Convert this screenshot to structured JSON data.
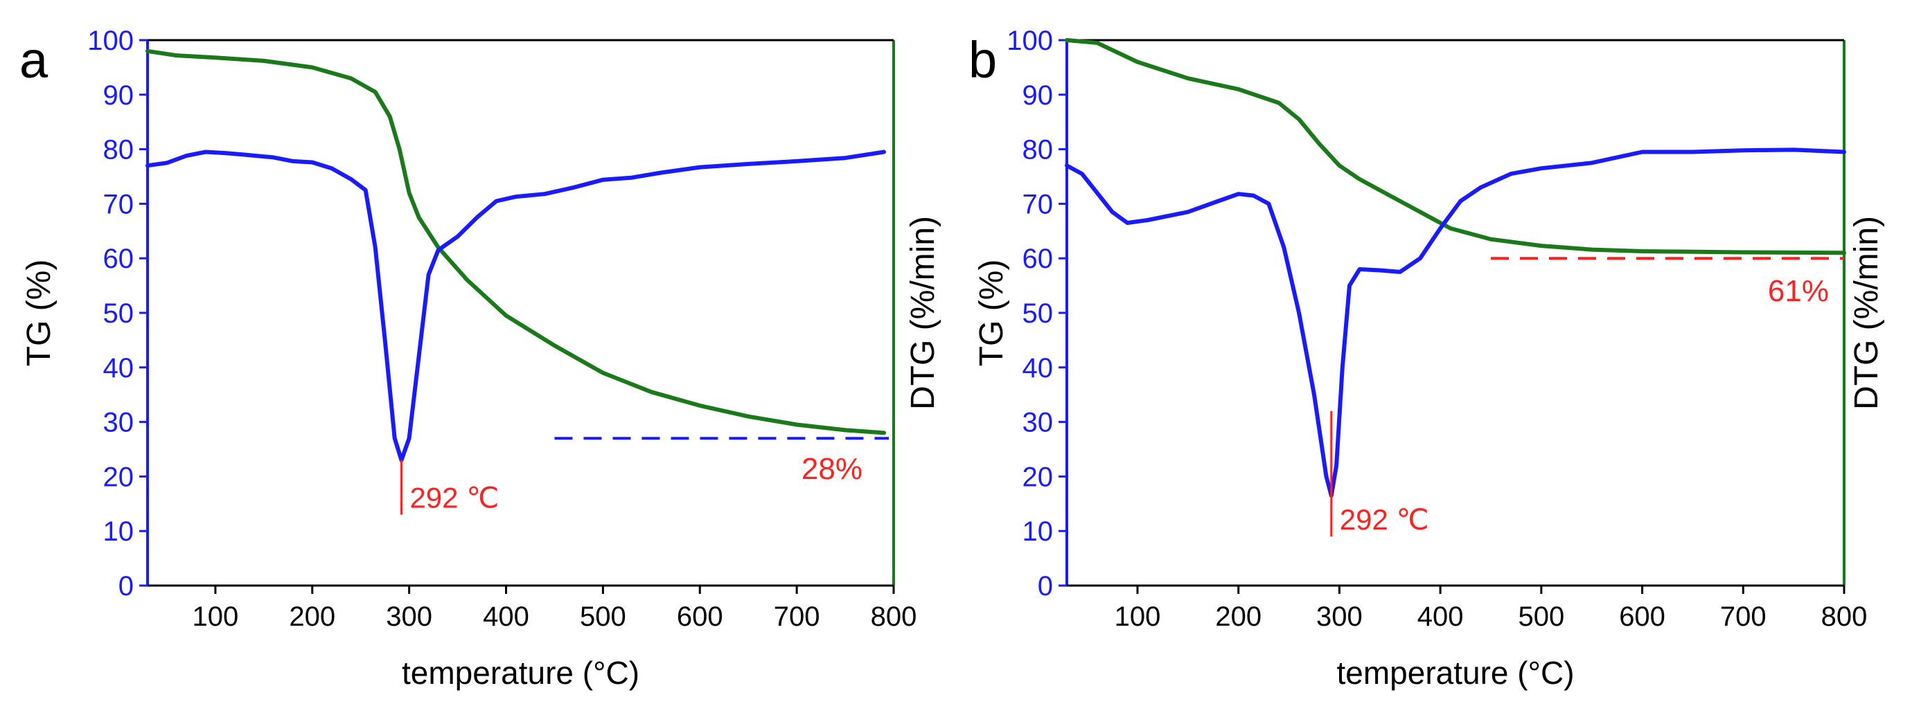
{
  "chart_data": [
    {
      "type": "line",
      "panel_label": "a",
      "xlabel": "temperature (°C)",
      "ylabel_left": "TG (%)",
      "ylabel_right": "DTG (%/min)",
      "xlim": [
        30,
        800
      ],
      "ylim": [
        0,
        100
      ],
      "x_ticks": [
        "100",
        "200",
        "300",
        "400",
        "500",
        "600",
        "700",
        "800"
      ],
      "y_ticks": [
        "0",
        "10",
        "20",
        "30",
        "40",
        "50",
        "60",
        "70",
        "80",
        "90",
        "100"
      ],
      "series": [
        {
          "name": "TG",
          "color": "#1a7a1a",
          "points": [
            [
              30,
              98
            ],
            [
              60,
              97.2
            ],
            [
              100,
              96.8
            ],
            [
              150,
              96.2
            ],
            [
              200,
              95
            ],
            [
              240,
              93
            ],
            [
              265,
              90.5
            ],
            [
              280,
              86
            ],
            [
              290,
              80
            ],
            [
              300,
              72
            ],
            [
              310,
              67.5
            ],
            [
              330,
              62
            ],
            [
              360,
              56
            ],
            [
              400,
              49.5
            ],
            [
              450,
              44
            ],
            [
              500,
              39
            ],
            [
              550,
              35.5
            ],
            [
              600,
              33
            ],
            [
              650,
              31
            ],
            [
              700,
              29.5
            ],
            [
              750,
              28.5
            ],
            [
              790,
              28
            ]
          ]
        },
        {
          "name": "DTG",
          "color": "#1a1aff",
          "points": [
            [
              30,
              77
            ],
            [
              50,
              77.5
            ],
            [
              70,
              78.8
            ],
            [
              90,
              79.5
            ],
            [
              110,
              79.3
            ],
            [
              130,
              79
            ],
            [
              160,
              78.5
            ],
            [
              180,
              77.8
            ],
            [
              200,
              77.6
            ],
            [
              220,
              76.5
            ],
            [
              240,
              74.5
            ],
            [
              255,
              72.5
            ],
            [
              265,
              62
            ],
            [
              275,
              45
            ],
            [
              285,
              27
            ],
            [
              292,
              23
            ],
            [
              300,
              27
            ],
            [
              310,
              42
            ],
            [
              320,
              57
            ],
            [
              330,
              61.5
            ],
            [
              350,
              64
            ],
            [
              370,
              67.5
            ],
            [
              390,
              70.5
            ],
            [
              410,
              71.3
            ],
            [
              440,
              71.8
            ],
            [
              470,
              73
            ],
            [
              500,
              74.4
            ],
            [
              530,
              74.8
            ],
            [
              560,
              75.7
            ],
            [
              600,
              76.7
            ],
            [
              650,
              77.3
            ],
            [
              700,
              77.8
            ],
            [
              750,
              78.4
            ],
            [
              790,
              79.5
            ]
          ]
        }
      ],
      "annotations": [
        {
          "text": "292 ℃",
          "x": 292,
          "y_range": [
            13,
            23
          ],
          "color": "#ff2020"
        },
        {
          "text": "28%",
          "dashed_line": {
            "x_range": [
              450,
              795
            ],
            "y": 27
          },
          "dash_color": "#1a1aff",
          "color": "#ff2020"
        }
      ]
    },
    {
      "type": "line",
      "panel_label": "b",
      "xlabel": "temperature (°C)",
      "ylabel_left": "TG (%)",
      "ylabel_right": "DTG (%/min)",
      "xlim": [
        30,
        800
      ],
      "ylim": [
        0,
        100
      ],
      "x_ticks": [
        "100",
        "200",
        "300",
        "400",
        "500",
        "600",
        "700",
        "800"
      ],
      "y_ticks": [
        "0",
        "10",
        "20",
        "30",
        "40",
        "50",
        "60",
        "70",
        "80",
        "90",
        "100"
      ],
      "series": [
        {
          "name": "TG",
          "color": "#1a7a1a",
          "points": [
            [
              30,
              100
            ],
            [
              60,
              99.5
            ],
            [
              100,
              96
            ],
            [
              150,
              93
            ],
            [
              200,
              91
            ],
            [
              240,
              88.5
            ],
            [
              260,
              85.5
            ],
            [
              280,
              81
            ],
            [
              300,
              77
            ],
            [
              320,
              74.5
            ],
            [
              350,
              71.5
            ],
            [
              380,
              68.5
            ],
            [
              410,
              65.5
            ],
            [
              450,
              63.5
            ],
            [
              500,
              62.3
            ],
            [
              550,
              61.6
            ],
            [
              600,
              61.3
            ],
            [
              700,
              61.1
            ],
            [
              800,
              61
            ]
          ]
        },
        {
          "name": "DTG",
          "color": "#1a1aff",
          "points": [
            [
              30,
              77
            ],
            [
              45,
              75.5
            ],
            [
              60,
              72
            ],
            [
              75,
              68.5
            ],
            [
              90,
              66.5
            ],
            [
              110,
              67
            ],
            [
              150,
              68.5
            ],
            [
              180,
              70.5
            ],
            [
              200,
              71.8
            ],
            [
              215,
              71.5
            ],
            [
              230,
              70
            ],
            [
              245,
              62
            ],
            [
              260,
              50
            ],
            [
              275,
              35
            ],
            [
              287,
              20
            ],
            [
              292,
              16.5
            ],
            [
              297,
              22
            ],
            [
              303,
              40
            ],
            [
              310,
              55
            ],
            [
              320,
              58
            ],
            [
              340,
              57.8
            ],
            [
              360,
              57.5
            ],
            [
              380,
              60
            ],
            [
              400,
              65.5
            ],
            [
              420,
              70.5
            ],
            [
              440,
              73
            ],
            [
              470,
              75.5
            ],
            [
              500,
              76.5
            ],
            [
              550,
              77.5
            ],
            [
              600,
              79.5
            ],
            [
              650,
              79.5
            ],
            [
              700,
              79.8
            ],
            [
              750,
              79.9
            ],
            [
              800,
              79.5
            ]
          ]
        }
      ],
      "annotations": [
        {
          "text": "292 ℃",
          "x": 292,
          "y_range": [
            9,
            32
          ],
          "color": "#ff2020"
        },
        {
          "text": "61%",
          "dashed_line": {
            "x_range": [
              450,
              800
            ],
            "y": 60
          },
          "dash_color": "#ff2020",
          "color": "#ff2020"
        }
      ]
    }
  ]
}
